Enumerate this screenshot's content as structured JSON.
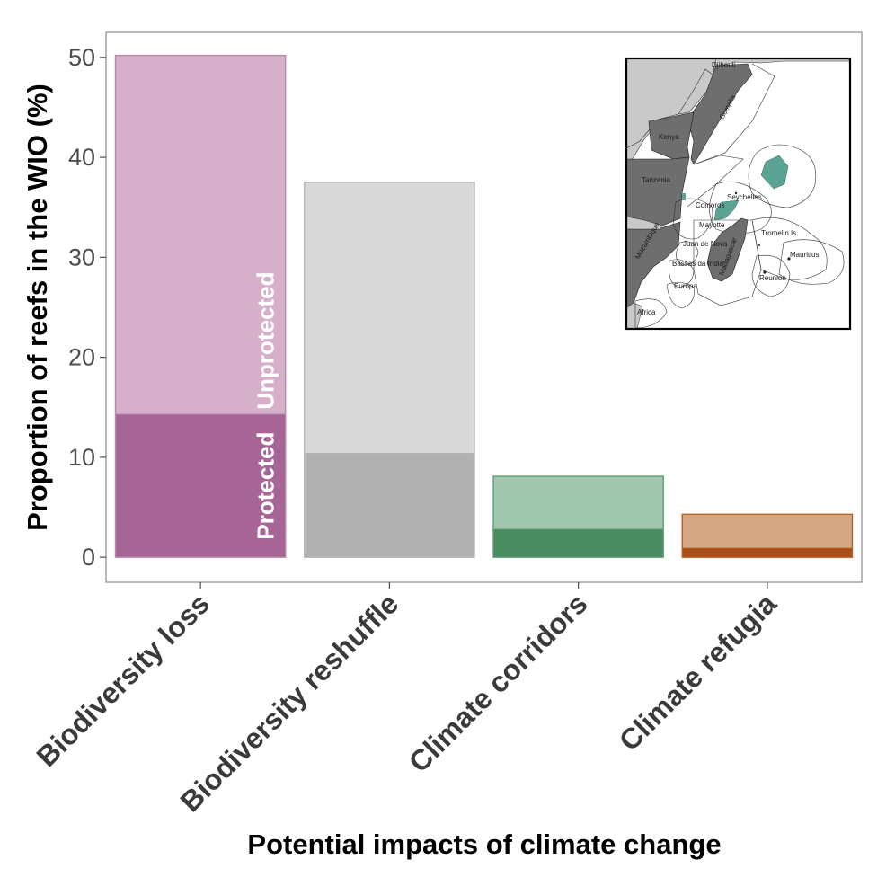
{
  "chart_data": {
    "type": "bar",
    "stacked": true,
    "xlabel": "Potential impacts of climate change",
    "ylabel": "Proportion of reefs in the WIO (%)",
    "ylim": [
      -2.5,
      52.5
    ],
    "yticks": [
      0,
      10,
      20,
      30,
      40,
      50
    ],
    "grid": false,
    "categories": [
      "Biodiversity loss",
      "Biodiversity reshuffle",
      "Climate corridors",
      "Climate refugia"
    ],
    "series": [
      {
        "name": "Protected",
        "values": [
          14.3,
          10.4,
          2.8,
          0.9
        ]
      },
      {
        "name": "Unprotected",
        "values": [
          35.9,
          27.1,
          5.3,
          3.4
        ]
      }
    ],
    "totals": [
      50.2,
      37.5,
      8.1,
      4.3
    ],
    "colors": {
      "protected": [
        "#a76597",
        "#b1b1b1",
        "#4a8c62",
        "#a84f19"
      ],
      "unprotected": [
        "#d6afca",
        "#d9d9d9",
        "#a1c6ae",
        "#d3a784"
      ],
      "outline": [
        "#b78aa9",
        "#b5b5b5",
        "#5f9e76",
        "#b8601f"
      ]
    },
    "segment_labels": [
      "Protected",
      "Unprotected"
    ]
  },
  "inset_map": {
    "labels": [
      "Djibouti",
      "Somalia",
      "Kenya",
      "Tanzania",
      "Seychelles",
      "Comoros",
      "Mayotte",
      "Mozambique",
      "Juan de Nova",
      "Tromelin Is.",
      "Mauritius",
      "Bassas da India",
      "Madagascar",
      "Europa",
      "Reunion",
      "Africa"
    ],
    "colors": {
      "land_grey": "#c9c9c9",
      "land_dark": "#6e6e6e",
      "protected_area": "#5ba394"
    }
  }
}
